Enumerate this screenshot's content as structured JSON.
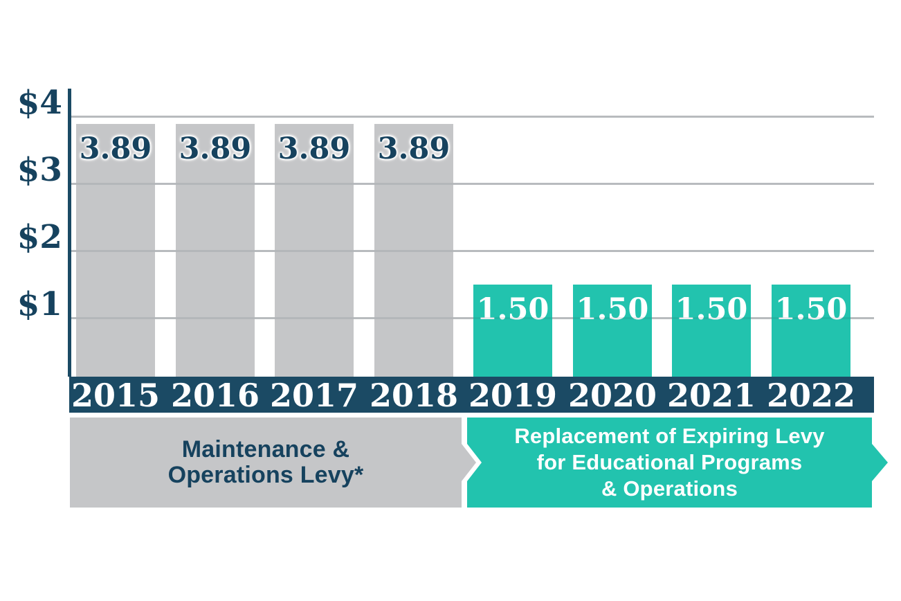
{
  "chart_data": {
    "type": "bar",
    "title": "",
    "categories": [
      "2015",
      "2016",
      "2017",
      "2018",
      "2019",
      "2020",
      "2021",
      "2022"
    ],
    "values": [
      3.89,
      3.89,
      3.89,
      3.89,
      1.5,
      1.5,
      1.5,
      1.5
    ],
    "bar_value_labels": [
      "3.89",
      "3.89",
      "3.89",
      "3.89",
      "1.50",
      "1.50",
      "1.50",
      "1.50"
    ],
    "ylim": [
      0,
      4
    ],
    "grid": true,
    "y_ticks": [
      {
        "label": "$4",
        "value": 4
      },
      {
        "label": "$3",
        "value": 3
      },
      {
        "label": "$2",
        "value": 2
      },
      {
        "label": "$1",
        "value": 1
      }
    ],
    "series": [
      {
        "name": "Maintenance & Operations Levy*",
        "categories": [
          "2015",
          "2016",
          "2017",
          "2018"
        ],
        "value_per_year": 3.89,
        "bar_color": "#c5c6c8",
        "value_label_color": "#16425e"
      },
      {
        "name": "Replacement of Expiring Levy for Educational Programs & Operations",
        "categories": [
          "2019",
          "2020",
          "2021",
          "2022"
        ],
        "value_per_year": 1.5,
        "bar_color": "#22c3ae",
        "value_label_color": "#ffffff"
      }
    ]
  },
  "colors": {
    "navy_band": "#1b4a64",
    "navy_text": "#16425e",
    "teal": "#22c3ae",
    "gray": "#c5c6c8",
    "gridline": "#c9cacc",
    "axis_line": "#1b4a64",
    "year_text": "#ffffff",
    "background": "#ffffff"
  },
  "footer": {
    "left_box": {
      "lines": [
        "Maintenance &",
        "Operations Levy*"
      ]
    },
    "right_box": {
      "lines": [
        "Replacement of Expiring Levy",
        "for Educational Programs",
        "& Operations"
      ]
    }
  }
}
